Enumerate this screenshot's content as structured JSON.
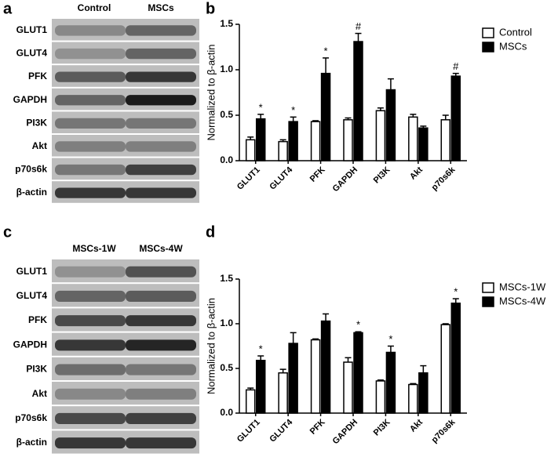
{
  "panels": {
    "a": "a",
    "b": "b",
    "c": "c",
    "d": "d"
  },
  "blot_a": {
    "columns": [
      "Control",
      "MSCs"
    ],
    "rows": [
      "GLUT1",
      "GLUT4",
      "PFK",
      "GAPDH",
      "PI3K",
      "Akt",
      "p70s6k",
      "β-actin"
    ]
  },
  "blot_c": {
    "columns": [
      "MSCs-1W",
      "MSCs-4W"
    ],
    "rows": [
      "GLUT1",
      "GLUT4",
      "PFK",
      "GAPDH",
      "PI3K",
      "Akt",
      "p70s6k",
      "β-actin"
    ]
  },
  "chart_data": [
    {
      "type": "bar",
      "ylabel": "Normalized to β-actin",
      "categories": [
        "GLUT1",
        "GLUT4",
        "PFK",
        "GAPDH",
        "PI3K",
        "Akt",
        "p70s6k"
      ],
      "series": [
        {
          "name": "Control",
          "color": "#ffffff",
          "values": [
            0.23,
            0.21,
            0.43,
            0.45,
            0.55,
            0.48,
            0.45
          ],
          "errors": [
            0.03,
            0.02,
            0.01,
            0.02,
            0.03,
            0.03,
            0.05
          ]
        },
        {
          "name": "MSCs",
          "color": "#000000",
          "values": [
            0.46,
            0.43,
            0.96,
            1.31,
            0.78,
            0.36,
            0.93
          ],
          "errors": [
            0.05,
            0.05,
            0.17,
            0.09,
            0.12,
            0.02,
            0.03
          ],
          "annotations": [
            "*",
            "*",
            "*",
            "#",
            null,
            null,
            "#"
          ]
        }
      ],
      "ylim": [
        0,
        1.5
      ],
      "yticks": [
        {
          "value": 0,
          "label": "0.0"
        },
        0.5,
        {
          "value": 1,
          "label": "1.0"
        },
        1.5
      ],
      "legend": "right"
    },
    {
      "type": "bar",
      "ylabel": "Normalized to β-actin",
      "categories": [
        "GLUT1",
        "GLUT4",
        "PFK",
        "GAPDH",
        "PI3K",
        "Akt",
        "p70s6k"
      ],
      "series": [
        {
          "name": "MSCs-1W",
          "color": "#ffffff",
          "values": [
            0.26,
            0.45,
            0.82,
            0.57,
            0.36,
            0.32,
            0.99
          ],
          "errors": [
            0.02,
            0.04,
            0.01,
            0.05,
            0.01,
            0.01,
            0.01
          ]
        },
        {
          "name": "MSCs-4W",
          "color": "#000000",
          "values": [
            0.59,
            0.78,
            1.03,
            0.9,
            0.68,
            0.45,
            1.23
          ],
          "errors": [
            0.05,
            0.12,
            0.08,
            0.01,
            0.07,
            0.08,
            0.05
          ],
          "annotations": [
            "*",
            null,
            null,
            "*",
            "*",
            null,
            "*"
          ]
        }
      ],
      "ylim": [
        0,
        1.5
      ],
      "yticks": [
        {
          "value": 0,
          "label": "0.0"
        },
        0.5,
        {
          "value": 1,
          "label": "1.0"
        },
        1.5
      ],
      "legend": "right"
    }
  ]
}
